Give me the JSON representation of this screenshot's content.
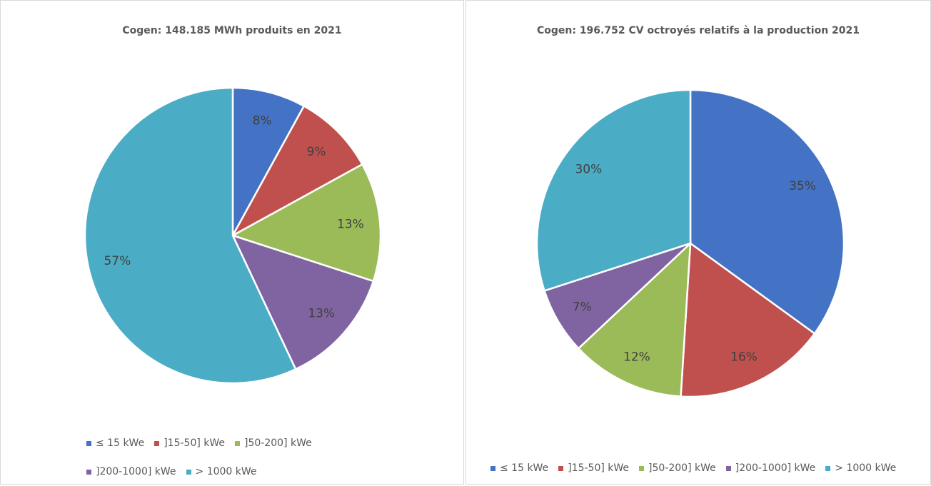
{
  "chart_data": [
    {
      "type": "pie",
      "title": "Cogen: 148.185 MWh produits en 2021",
      "categories": [
        "≤ 15 kWe",
        "]15-50] kWe",
        "]50-200] kWe",
        "]200-1000] kWe",
        "> 1000 kWe"
      ],
      "values": [
        8,
        9,
        13,
        13,
        57
      ],
      "value_labels": [
        "8%",
        "9%",
        "13%",
        "13%",
        "57%"
      ],
      "colors": [
        "#4472c4",
        "#c0504d",
        "#9bbb59",
        "#8064a2",
        "#4bacc6"
      ],
      "legend": "bottom"
    },
    {
      "type": "pie",
      "title": "Cogen: 196.752 CV octroyés relatifs à la production 2021",
      "categories": [
        "≤ 15 kWe",
        "]15-50] kWe",
        "]50-200] kWe",
        "]200-1000] kWe",
        "> 1000 kWe"
      ],
      "values": [
        35,
        16,
        12,
        7,
        30
      ],
      "value_labels": [
        "35%",
        "16%",
        "12%",
        "7%",
        "30%"
      ],
      "colors": [
        "#4472c4",
        "#c0504d",
        "#9bbb59",
        "#8064a2",
        "#4bacc6"
      ],
      "legend": "bottom"
    }
  ]
}
